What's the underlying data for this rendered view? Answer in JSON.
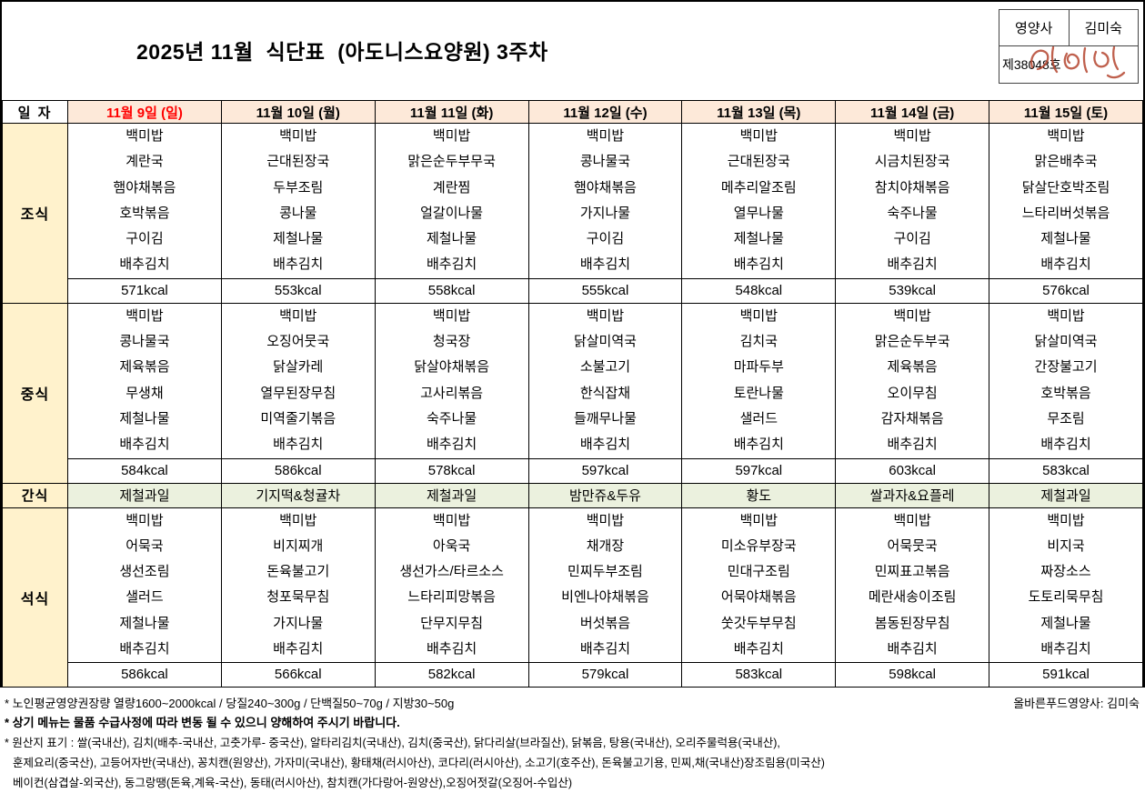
{
  "title": "2025년 11월  식단표  (아도니스요양원) 3주차",
  "approval": {
    "role": "영양사",
    "name": "김미숙",
    "doc_no": "제38048호",
    "signature_name": "김미숙"
  },
  "table": {
    "date_label": "일 자",
    "days": [
      "11월 9일 (일)",
      "11월 10일 (월)",
      "11월 11일 (화)",
      "11월 12일 (수)",
      "11월 13일 (목)",
      "11월 14일 (금)",
      "11월 15일 (토)"
    ],
    "meals": [
      {
        "id": "breakfast",
        "type": "menu",
        "label": "조식",
        "menus": [
          [
            "백미밥",
            "계란국",
            "햄야채볶음",
            "호박볶음",
            "구이김",
            "배추김치"
          ],
          [
            "백미밥",
            "근대된장국",
            "두부조림",
            "콩나물",
            "제철나물",
            "배추김치"
          ],
          [
            "백미밥",
            "맑은순두부무국",
            "계란찜",
            "얼갈이나물",
            "제철나물",
            "배추김치"
          ],
          [
            "백미밥",
            "콩나물국",
            "햄야채볶음",
            "가지나물",
            "구이김",
            "배추김치"
          ],
          [
            "백미밥",
            "근대된장국",
            "메추리알조림",
            "열무나물",
            "제철나물",
            "배추김치"
          ],
          [
            "백미밥",
            "시금치된장국",
            "참치야채볶음",
            "숙주나물",
            "구이김",
            "배추김치"
          ],
          [
            "백미밥",
            "맑은배추국",
            "닭살단호박조림",
            "느타리버섯볶음",
            "제철나물",
            "배추김치"
          ]
        ],
        "kcal": [
          "571kcal",
          "553kcal",
          "558kcal",
          "555kcal",
          "548kcal",
          "539kcal",
          "576kcal"
        ]
      },
      {
        "id": "lunch",
        "type": "menu",
        "label": "중식",
        "menus": [
          [
            "백미밥",
            "콩나물국",
            "제육볶음",
            "무생채",
            "제철나물",
            "배추김치"
          ],
          [
            "백미밥",
            "오징어뭇국",
            "닭살카레",
            "열무된장무침",
            "미역줄기볶음",
            "배추김치"
          ],
          [
            "백미밥",
            "청국장",
            "닭살야채볶음",
            "고사리볶음",
            "숙주나물",
            "배추김치"
          ],
          [
            "백미밥",
            "닭살미역국",
            "소불고기",
            "한식잡채",
            "들깨무나물",
            "배추김치"
          ],
          [
            "백미밥",
            "김치국",
            "마파두부",
            "토란나물",
            "샐러드",
            "배추김치"
          ],
          [
            "백미밥",
            "맑은순두부국",
            "제육볶음",
            "오이무침",
            "감자채볶음",
            "배추김치"
          ],
          [
            "백미밥",
            "닭살미역국",
            "간장불고기",
            "호박볶음",
            "무조림",
            "배추김치"
          ]
        ],
        "kcal": [
          "584kcal",
          "586kcal",
          "578kcal",
          "597kcal",
          "597kcal",
          "603kcal",
          "583kcal"
        ]
      },
      {
        "id": "snack",
        "type": "snack",
        "label": "간식",
        "items": [
          "제철과일",
          "기지떡&청귤차",
          "제철과일",
          "밤만쥬&두유",
          "황도",
          "쌀과자&요플레",
          "제철과일"
        ]
      },
      {
        "id": "dinner",
        "type": "menu",
        "label": "석식",
        "menus": [
          [
            "백미밥",
            "어묵국",
            "생선조림",
            "샐러드",
            "제철나물",
            "배추김치"
          ],
          [
            "백미밥",
            "비지찌개",
            "돈육불고기",
            "청포묵무침",
            "가지나물",
            "배추김치"
          ],
          [
            "백미밥",
            "아욱국",
            "생선가스/타르소스",
            "느타리피망볶음",
            "단무지무침",
            "배추김치"
          ],
          [
            "백미밥",
            "채개장",
            "민찌두부조림",
            "비엔나야채볶음",
            "버섯볶음",
            "배추김치"
          ],
          [
            "백미밥",
            "미소유부장국",
            "민대구조림",
            "어묵야채볶음",
            "쑷갓두부무침",
            "배추김치"
          ],
          [
            "백미밥",
            "어묵뭇국",
            "민찌표고볶음",
            "메란새송이조림",
            "봄동된장무침",
            "배추김치"
          ],
          [
            "백미밥",
            "비지국",
            "짜장소스",
            "도토리묵무침",
            "제철나물",
            "배추김치"
          ]
        ],
        "kcal": [
          "586kcal",
          "566kcal",
          "582kcal",
          "579kcal",
          "583kcal",
          "598kcal",
          "591kcal"
        ]
      }
    ]
  },
  "footer": {
    "line1": "* 노인평균영양권장량 열량1600~2000kcal / 당질240~300g / 단백질50~70g / 지방30~50g",
    "line1_right": "올바른푸드영양사: 김미숙",
    "line2": "* 상기 메뉴는 물품 수급사정에 따라 변동 될 수 있으니 양해하여 주시기 바랍니다.",
    "line3": "* 원산지 표기 : 쌀(국내산), 김치(배추-국내산, 고춧가루- 중국산), 알타리김치(국내산), 김치(중국산), 닭다리살(브라질산), 닭볶음, 탕용(국내산), 오리주물럭용(국내산),",
    "line4": "훈제요리(중국산), 고등어자반(국내산), 꽁치캔(원양산), 가자미(국내산), 황태채(러시아산), 코다리(러시아산), 소고기(호주산), 돈육불고기용, 민찌,채(국내산)장조림용(미국산)",
    "line5": "베이컨(삼겹살-외국산), 동그랑땡(돈육,계육-국산), 동태(러시아산), 참치캔(가다랑어-원양산),오징어젓갈(오징어-수입산)"
  }
}
